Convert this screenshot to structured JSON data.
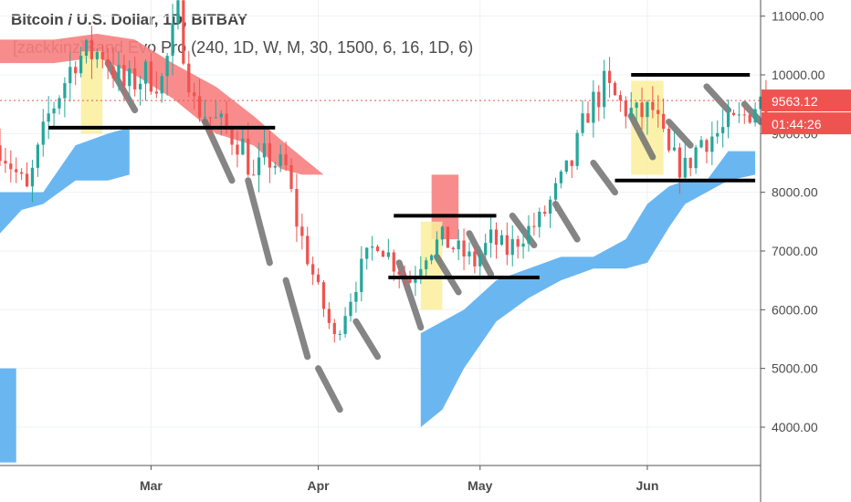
{
  "header": {
    "title": "Bitcoin / U.S. Dollar, 1D, BITBAY",
    "indicator": "[zackkinz]Band Evo Pro (240, 1D, W, M, 30, 1500, 6, 16, 1D, 6)"
  },
  "price_tag": {
    "price": "9563.12",
    "countdown": "01:44:26"
  },
  "colors": {
    "up": "#26a69a",
    "down": "#ef5350",
    "cloud_red": "#f77f7f",
    "cloud_blue": "#5aaef0",
    "band_gray": "#707070",
    "highlight": "#fbef9c",
    "level_line": "#000000",
    "tag_bg": "#ef5350"
  },
  "chart_data": {
    "type": "candlestick",
    "title": "Bitcoin / U.S. Dollar, 1D, BITBAY",
    "y_tick_labels": [
      "11000.00",
      "10000.00",
      "9000.00",
      "8000.00",
      "7000.00",
      "6000.00",
      "5000.00",
      "4000.00"
    ],
    "y_ticks": [
      11000,
      10000,
      9000,
      8000,
      7000,
      6000,
      5000,
      4000
    ],
    "ylim": [
      3400,
      11250
    ],
    "x_tick_labels": [
      "Mar",
      "Apr",
      "May",
      "Jun"
    ],
    "x_ticks": [
      "2018-03-01",
      "2018-04-01",
      "2018-05-01",
      "2018-06-01"
    ],
    "xlim": [
      "2018-02-01",
      "2018-06-22"
    ],
    "current_price": 9563.12,
    "current_price_line": "dotted",
    "grid": true,
    "horizontal_levels": [
      {
        "x_start": "2018-02-10",
        "x_end": "2018-03-24",
        "y": 9100
      },
      {
        "x_start": "2018-04-15",
        "x_end": "2018-05-04",
        "y": 7600
      },
      {
        "x_start": "2018-04-14",
        "x_end": "2018-05-12",
        "y": 6550
      },
      {
        "x_start": "2018-05-29",
        "x_end": "2018-06-20",
        "y": 10000
      },
      {
        "x_start": "2018-05-26",
        "x_end": "2018-06-21",
        "y": 8200
      }
    ],
    "highlight_zones": [
      {
        "x_start": "2018-02-16",
        "x_end": "2018-02-20",
        "y_low": 9000,
        "y_high": 10400
      },
      {
        "x_start": "2018-04-20",
        "x_end": "2018-04-24",
        "y_low": 6000,
        "y_high": 7500
      },
      {
        "x_start": "2018-05-29",
        "x_end": "2018-06-04",
        "y_low": 8300,
        "y_high": 9900
      }
    ]
  }
}
